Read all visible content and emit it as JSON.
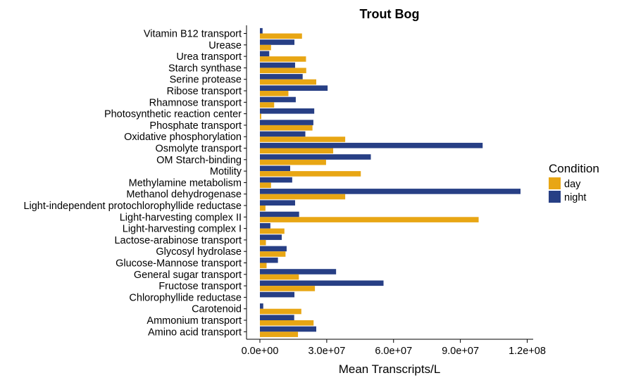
{
  "chart_data": {
    "type": "bar",
    "orientation": "horizontal",
    "title": "Trout Bog",
    "xlabel": "Mean Transcripts/L",
    "ylabel": "",
    "xlim": [
      0,
      120000000
    ],
    "x_ticks": [
      {
        "value": 0,
        "label": "0.0e+00"
      },
      {
        "value": 30000000,
        "label": "3.0e+07"
      },
      {
        "value": 60000000,
        "label": "6.0e+07"
      },
      {
        "value": 90000000,
        "label": "9.0e+07"
      },
      {
        "value": 120000000,
        "label": "1.2e+08"
      }
    ],
    "legend": {
      "title": "Condition",
      "position": "right"
    },
    "colors": {
      "day": "#E8A614",
      "night": "#273F85"
    },
    "categories": [
      "Vitamin B12 transport",
      "Urease",
      "Urea transport",
      "Starch synthase",
      "Serine protease",
      "Ribose transport",
      "Rhamnose transport",
      "Photosynthetic reaction center",
      "Phosphate transport",
      "Oxidative phosphorylation",
      "Osmolyte transport",
      "OM Starch-binding",
      "Motility",
      "Methylamine metabolism",
      "Methanol dehydrogenase",
      "Light-independent protochlorophyllide reductase",
      "Light-harvesting complex II",
      "Light-harvesting complex I",
      "Lactose-arabinose transport",
      "Glycosyl hydrolase",
      "Glucose-Mannose transport",
      "General sugar transport",
      "Fructose transport",
      "Chlorophyllide reductase",
      "Carotenoid",
      "Ammonium transport",
      "Amino acid transport"
    ],
    "series": [
      {
        "name": "night",
        "values": [
          1200000,
          15500000,
          4200000,
          15800000,
          19200000,
          30400000,
          16100000,
          24400000,
          24000000,
          20400000,
          100000000,
          49800000,
          13600000,
          14500000,
          117000000,
          15800000,
          17600000,
          4700000,
          9800000,
          12000000,
          8100000,
          34200000,
          55500000,
          15500000,
          1500000,
          15400000,
          25300000
        ]
      },
      {
        "name": "day",
        "values": [
          18900000,
          5000000,
          20700000,
          20800000,
          25300000,
          12800000,
          6400000,
          600000,
          23600000,
          38300000,
          32900000,
          29700000,
          45300000,
          5000000,
          38300000,
          2500000,
          98200000,
          11000000,
          2700000,
          11500000,
          3000000,
          17500000,
          24700000,
          0,
          18600000,
          24100000,
          17100000
        ]
      }
    ]
  }
}
